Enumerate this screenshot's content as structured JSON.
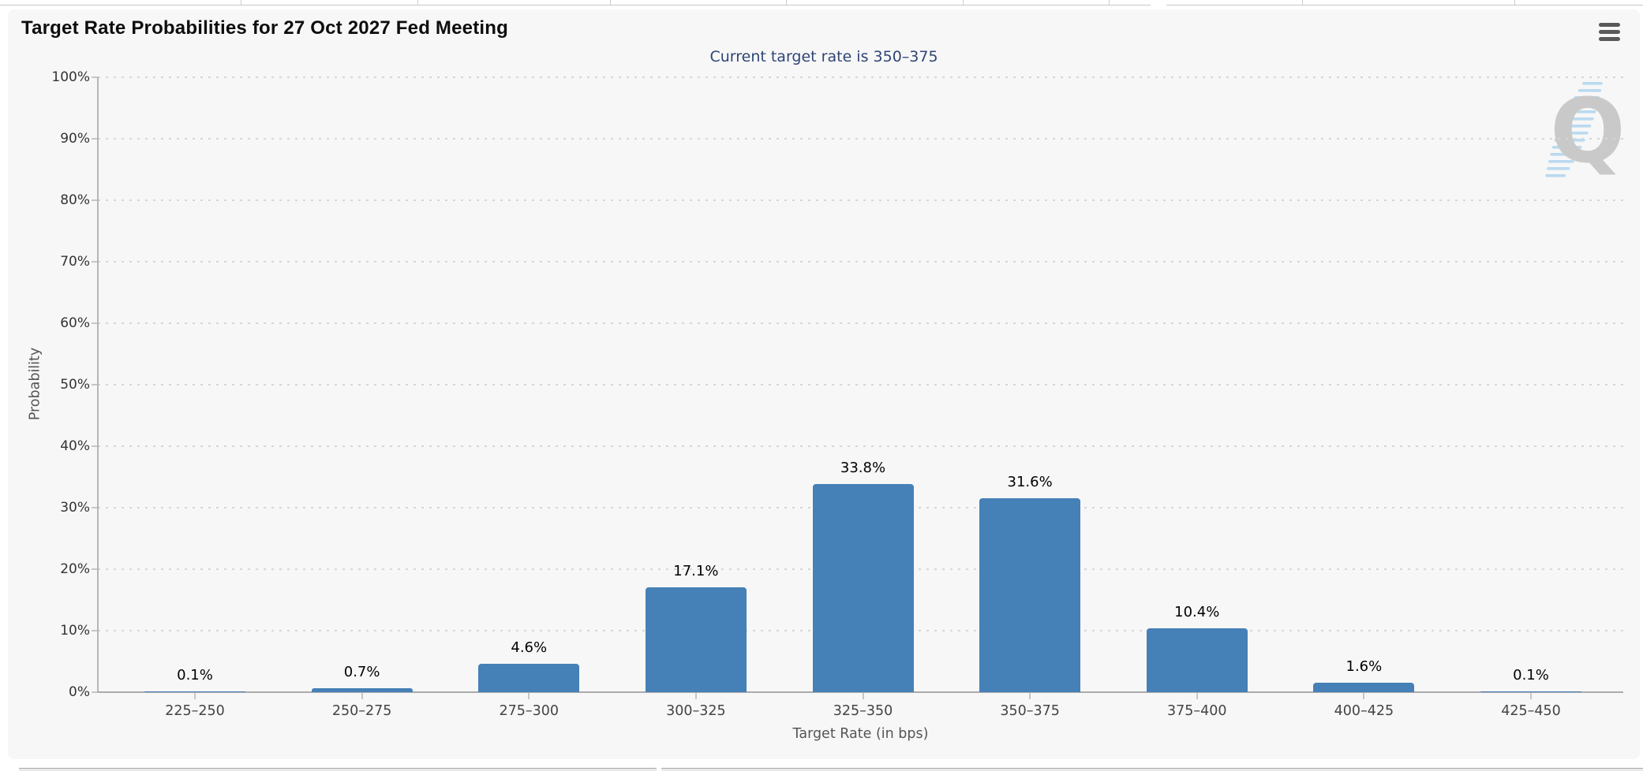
{
  "panel": {
    "title": "Target Rate Probabilities for 27 Oct 2027 Fed Meeting",
    "subtitle": "Current target rate is 350–375",
    "watermark_letter": "Q"
  },
  "chart_data": {
    "type": "bar",
    "title": "Target Rate Probabilities for 27 Oct 2027 Fed Meeting",
    "subtitle": "Current target rate is 350–375",
    "xlabel": "Target Rate (in bps)",
    "ylabel": "Probability",
    "ylim": [
      0,
      100
    ],
    "ytick_labels": [
      "0%",
      "10%",
      "20%",
      "30%",
      "40%",
      "50%",
      "60%",
      "70%",
      "80%",
      "90%",
      "100%"
    ],
    "categories": [
      "225–250",
      "250–275",
      "275–300",
      "300–325",
      "325–350",
      "350–375",
      "375–400",
      "400–425",
      "425–450"
    ],
    "values": [
      0.1,
      0.7,
      4.6,
      17.1,
      33.8,
      31.6,
      10.4,
      1.6,
      0.1
    ],
    "value_labels": [
      "0.1%",
      "0.7%",
      "4.6%",
      "17.1%",
      "33.8%",
      "31.6%",
      "10.4%",
      "1.6%",
      "0.1%"
    ],
    "grid": "horizontal-dotted",
    "legend": "none",
    "bar_color": "#4580b7"
  },
  "colors": {
    "panel_bg": "#f7f7f7",
    "bar": "#4580b7",
    "subtitle_text": "#2f4576",
    "gridline": "#d6d6d6",
    "watermark_q": "#c9c9c9",
    "watermark_stripes": "#badaf0"
  }
}
